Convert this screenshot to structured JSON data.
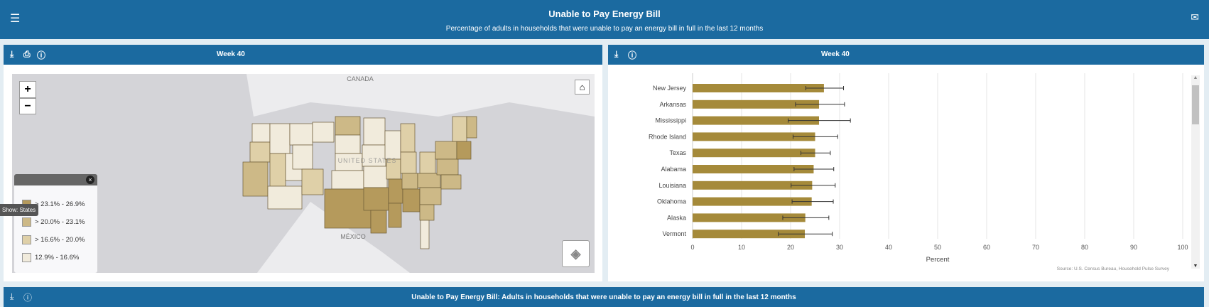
{
  "header": {
    "title": "Unable to Pay Energy Bill",
    "subtitle": "Percentage of adults in households that were unable to pay an energy bill in full in the last 12 months",
    "menu_icon": "menu-collapse-icon",
    "mail_icon": "mail-icon"
  },
  "map_panel": {
    "title": "Week 40",
    "icons": [
      "download-icon",
      "print-icon",
      "help-icon"
    ],
    "map": {
      "labels": {
        "canada": "CANADA",
        "mexico": "MÉXICO",
        "usa": "UNITED STATES"
      },
      "zoom_in": "+",
      "zoom_out": "−",
      "tooltip": "Show: States"
    },
    "legend": {
      "items": [
        {
          "label": "> 23.1% - 26.9%",
          "color": "#b59a5c"
        },
        {
          "label": "> 20.0% - 23.1%",
          "color": "#cdb987"
        },
        {
          "label": "> 16.6% - 20.0%",
          "color": "#dfd0a8"
        },
        {
          "label": "12.9% - 16.6%",
          "color": "#f1ebdc"
        }
      ]
    }
  },
  "chart_panel": {
    "title": "Week 40",
    "icons": [
      "download-icon",
      "help-icon"
    ],
    "source": "Source: U.S. Census Bureau, Household Pulse Survey"
  },
  "bottom_bar": {
    "title": "Unable to Pay Energy Bill: Adults in households that were unable to pay an energy bill in full in the last 12 months"
  },
  "chart_data": {
    "type": "bar",
    "orientation": "horizontal",
    "xlabel": "Percent",
    "xlim": [
      0,
      100
    ],
    "xticks": [
      0,
      10,
      20,
      30,
      40,
      50,
      60,
      70,
      80,
      90,
      100
    ],
    "grid": true,
    "bar_color": "#a58a3a",
    "categories": [
      "New Jersey",
      "Arkansas",
      "Mississippi",
      "Rhode Island",
      "Texas",
      "Alabama",
      "Louisiana",
      "Oklahoma",
      "Alaska",
      "Vermont"
    ],
    "values": [
      26.8,
      25.8,
      25.8,
      25.0,
      25.0,
      24.7,
      24.4,
      24.3,
      23.0,
      22.9
    ],
    "error_low": [
      23.1,
      21.0,
      19.5,
      20.5,
      22.1,
      20.7,
      20.1,
      20.3,
      18.4,
      17.5
    ],
    "error_high": [
      30.8,
      31.0,
      32.2,
      29.6,
      28.1,
      28.8,
      29.1,
      28.7,
      27.8,
      28.5
    ]
  }
}
